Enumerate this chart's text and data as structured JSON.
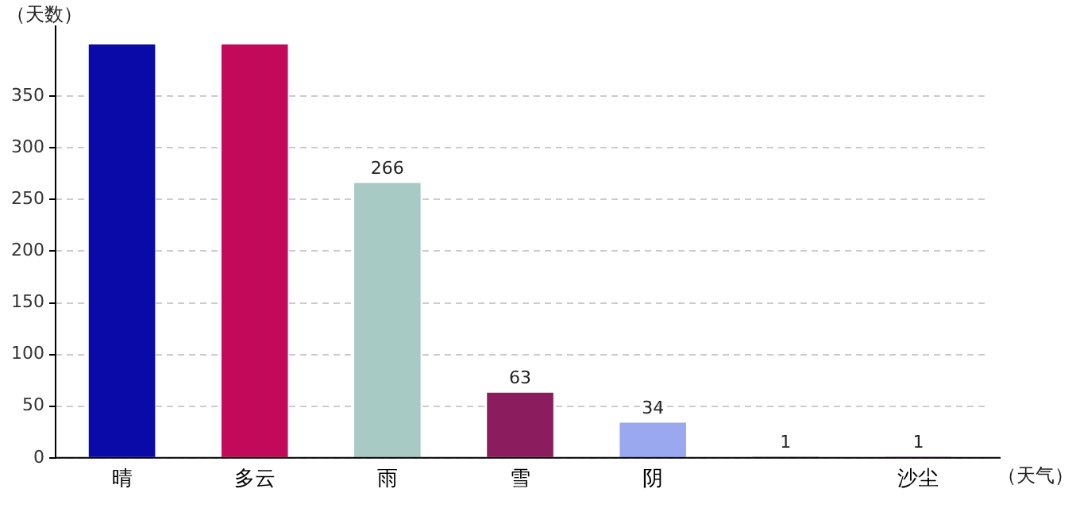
{
  "chart_data": {
    "type": "bar",
    "xlabel": "（天气）",
    "ylabel": "（天数）",
    "categories": [
      "晴",
      "多云",
      "雨",
      "雪",
      "阴",
      null,
      "沙尘"
    ],
    "values": [
      400,
      400,
      266,
      63,
      34,
      1,
      1
    ],
    "colors": [
      "#0a0aa8",
      "#c2095a",
      "#a7cbc4",
      "#8b1c5e",
      "#9aa8f0",
      "#5a1040",
      "#7a2a70"
    ],
    "value_labels": [
      null,
      null,
      "266",
      "63",
      "34",
      "1",
      "1"
    ],
    "ylim": [
      0,
      400
    ],
    "yticks": [
      0,
      50,
      100,
      150,
      200,
      250,
      300,
      350
    ],
    "grid": "y",
    "legend": false
  }
}
